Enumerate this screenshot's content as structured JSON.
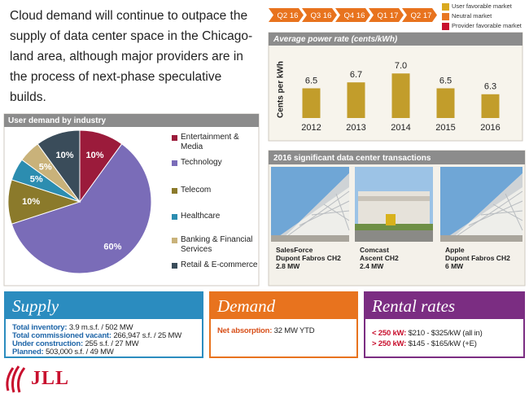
{
  "headline": [
    "Cloud demand will continue to outpace the",
    "supply of data center space in the Chicago-",
    "land area, although major providers are in",
    "the process of next-phase speculative",
    "builds."
  ],
  "timeline": [
    "Q2 16",
    "Q3 16",
    "Q4 16",
    "Q1 17",
    "Q2 17"
  ],
  "market_legend": [
    {
      "label": "User favorable market",
      "color": "#d9a91f"
    },
    {
      "label": "Neutral market",
      "color": "#e87722"
    },
    {
      "label": "Provider favorable market",
      "color": "#c8102e"
    }
  ],
  "chart_data": [
    {
      "type": "bar",
      "title": "Average power rate (cents/kWh)",
      "y_label": "Cents per kWh",
      "categories": [
        "2012",
        "2013",
        "2014",
        "2015",
        "2016"
      ],
      "values": [
        6.5,
        6.7,
        7.0,
        6.5,
        6.3
      ],
      "value_labels": [
        "6.5",
        "6.7",
        "7.0",
        "6.5",
        "6.3"
      ],
      "color": "#c29d2b",
      "ylim": [
        5.5,
        7.5
      ]
    },
    {
      "type": "pie",
      "title": "User demand by industry",
      "categories": [
        "Entertainment & Media",
        "Technology",
        "Telecom",
        "Healthcare",
        "Banking & Financial Services",
        "Retail & E-commerce"
      ],
      "values": [
        10,
        60,
        10,
        5,
        5,
        10
      ],
      "value_labels": [
        "10%",
        "60%",
        "10%",
        "5%",
        "5%",
        "10%"
      ],
      "colors": [
        "#9b1b3b",
        "#7a6cb8",
        "#8b7a2b",
        "#2c8db0",
        "#c9b27a",
        "#3a4c5a"
      ]
    }
  ],
  "transactions": {
    "title": "2016  significant data center transactions",
    "items": [
      {
        "tenant": "SalesForce",
        "site": "Dupont Fabros CH2",
        "size": "2.8 MW"
      },
      {
        "tenant": "Comcast",
        "site": "Ascent CH2",
        "size": "2.4 MW"
      },
      {
        "tenant": "Apple",
        "site": "Dupont Fabros CH2",
        "size": "6 MW"
      }
    ]
  },
  "supply": {
    "title": "Supply",
    "rows": [
      {
        "label": "Total inventory:",
        "value": "3.9 m.s.f. / 502 MW"
      },
      {
        "label": "Total commissioned vacant:",
        "value": "266,947 s.f. / 25 MW"
      },
      {
        "label": "Under construction:",
        "value": "255 s.f. / 27 MW"
      },
      {
        "label": "Planned:",
        "value": "503,000 s.f. / 49 MW"
      }
    ]
  },
  "demand": {
    "title": "Demand",
    "rows": [
      {
        "label": "Net absorption:",
        "value": "32 MW YTD"
      }
    ]
  },
  "rental_rates": {
    "title": "Rental rates",
    "rows": [
      {
        "label": "< 250 kW:",
        "value": "$210 - $325/kW (all in)"
      },
      {
        "label": "> 250 kW:",
        "value": "$145 - $165/kW (+E)"
      }
    ]
  },
  "logo": "JLL"
}
